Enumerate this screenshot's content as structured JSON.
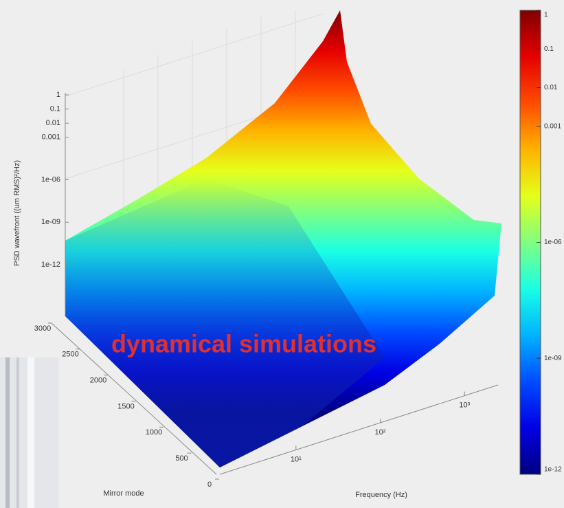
{
  "chart_data": {
    "type": "surface",
    "zlabel": "PSD wavefront ((um RMS)²/Hz)",
    "ylabel": "Mirror mode",
    "xlabel": "Frequency (Hz)",
    "annotation": "dynamical simulations",
    "zscale": "log",
    "xscale": "log",
    "zlim": [
      1e-12,
      1
    ],
    "zticks": [
      1,
      0.1,
      0.01,
      0.001,
      {
        "value": 1e-06,
        "label": "1e-06"
      },
      {
        "value": 1e-09,
        "label": "1e-09"
      },
      {
        "value": 1e-12,
        "label": "1e-12"
      }
    ],
    "ylim": [
      0,
      3000
    ],
    "yticks": [
      3000,
      2500,
      2000,
      1500,
      1000,
      500,
      0
    ],
    "xlim": [
      1.25,
      2500
    ],
    "xticks": [
      {
        "value": 10,
        "label": "10¹"
      },
      {
        "value": 100,
        "label": "10²"
      },
      {
        "value": 1000,
        "label": "10³"
      }
    ],
    "colorbar": {
      "colormap": "jet",
      "lim": [
        1e-12,
        1
      ],
      "ticks": [
        1,
        0.1,
        0.01,
        0.001,
        {
          "value": 1e-06,
          "label": "1e-06"
        },
        {
          "value": 1e-09,
          "label": "1e-09"
        },
        {
          "value": 1e-12,
          "label": "1e-12"
        }
      ]
    }
  }
}
